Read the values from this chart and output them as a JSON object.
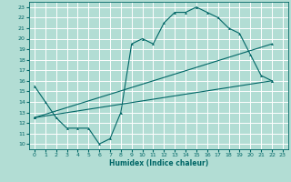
{
  "xlabel": "Humidex (Indice chaleur)",
  "bg_color": "#b2ddd4",
  "grid_color": "#ffffff",
  "line_color": "#006666",
  "xlim": [
    -0.5,
    23.5
  ],
  "ylim": [
    9.5,
    23.5
  ],
  "xticks": [
    0,
    1,
    2,
    3,
    4,
    5,
    6,
    7,
    8,
    9,
    10,
    11,
    12,
    13,
    14,
    15,
    16,
    17,
    18,
    19,
    20,
    21,
    22,
    23
  ],
  "yticks": [
    10,
    11,
    12,
    13,
    14,
    15,
    16,
    17,
    18,
    19,
    20,
    21,
    22,
    23
  ],
  "curve1_x": [
    0,
    1,
    2,
    3,
    4,
    5,
    6,
    7,
    8,
    9,
    10,
    11,
    12,
    13,
    14,
    15,
    16,
    17,
    18,
    19,
    20,
    21,
    22
  ],
  "curve1_y": [
    15.5,
    14.0,
    12.5,
    11.5,
    11.5,
    11.5,
    10.0,
    10.5,
    13.0,
    19.5,
    20.0,
    19.5,
    21.5,
    22.5,
    22.5,
    23.0,
    22.5,
    22.0,
    21.0,
    20.5,
    18.5,
    16.5,
    16.0
  ],
  "curve2_x": [
    0,
    22
  ],
  "curve2_y": [
    12.5,
    19.5
  ],
  "curve3_x": [
    0,
    22
  ],
  "curve3_y": [
    12.5,
    16.0
  ],
  "tick_fontsize": 4.5,
  "xlabel_fontsize": 5.5
}
